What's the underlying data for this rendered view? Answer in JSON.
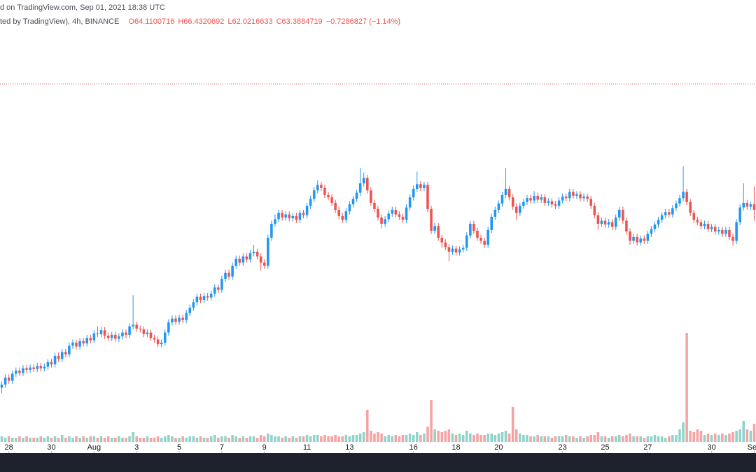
{
  "chart_data": {
    "type": "candlestick",
    "source": "d on TradingView.com, Sep 01, 2021 18:38 UTC",
    "subtitle": "ted by TradingView), 4h, BINANCE",
    "ohlc_labels": [
      "O64.1100716",
      "H66.4320692",
      "L62.0216633",
      "C63.3884719",
      "−0.7286827 (−1.14%)"
    ],
    "up_color": "#2196f3",
    "down_color": "#ef5350",
    "volume_up_color": "#8fd3ca",
    "volume_down_color": "#f5a3a3",
    "price_line": 79.6,
    "price_line_color": "#ef5350",
    "xlim": [
      -0.5,
      212.5
    ],
    "ylim": [
      32.08,
      86.8
    ],
    "vlim": [
      0,
      100
    ],
    "xticks": [
      {
        "value": 2,
        "label": "28"
      },
      {
        "value": 14,
        "label": "30"
      },
      {
        "value": 26,
        "label": "Aug"
      },
      {
        "value": 38,
        "label": "3"
      },
      {
        "value": 50,
        "label": "5"
      },
      {
        "value": 62,
        "label": "7"
      },
      {
        "value": 74,
        "label": "9"
      },
      {
        "value": 86,
        "label": "11"
      },
      {
        "value": 98,
        "label": "13"
      },
      {
        "value": 116,
        "label": "16"
      },
      {
        "value": 128,
        "label": "18"
      },
      {
        "value": 140,
        "label": "20"
      },
      {
        "value": 158,
        "label": "23"
      },
      {
        "value": 170,
        "label": "25"
      },
      {
        "value": 182,
        "label": "27"
      },
      {
        "value": 200,
        "label": "30"
      },
      {
        "value": 212,
        "label": "Sep"
      }
    ],
    "open": [
      40.5,
      40.9,
      41.8,
      41.4,
      42.3,
      42.7,
      42.4,
      43.0,
      42.8,
      43.1,
      42.9,
      43.3,
      43.0,
      43.2,
      43.8,
      43.5,
      44.6,
      44.2,
      45.1,
      44.8,
      45.9,
      46.3,
      45.8,
      46.5,
      46.2,
      46.9,
      46.6,
      47.5,
      47.4,
      47.9,
      47.2,
      46.9,
      47.3,
      46.8,
      47.1,
      47.6,
      47.3,
      48.4,
      48.6,
      48.1,
      48.0,
      47.4,
      47.6,
      46.9,
      46.7,
      46.1,
      46.3,
      47.6,
      48.9,
      49.4,
      49.0,
      49.5,
      49.2,
      50.1,
      50.8,
      51.5,
      52.2,
      51.8,
      52.3,
      52.1,
      52.6,
      53.4,
      53.1,
      54.5,
      55.3,
      54.8,
      56.2,
      57.1,
      56.6,
      57.4,
      57.0,
      57.8,
      58.0,
      57.4,
      56.6,
      56.2,
      59.8,
      61.6,
      62.2,
      63.0,
      62.4,
      62.8,
      62.3,
      62.6,
      62.1,
      63.0,
      62.7,
      63.9,
      64.8,
      65.9,
      66.6,
      66.2,
      65.3,
      65.0,
      64.3,
      63.4,
      62.6,
      62.1,
      63.2,
      64.1,
      64.8,
      65.6,
      66.8,
      67.5,
      65.9,
      64.3,
      63.5,
      62.4,
      61.6,
      62.2,
      62.9,
      63.4,
      62.8,
      62.5,
      62.1,
      63.7,
      65.0,
      66.1,
      66.7,
      66.2,
      66.6,
      63.5,
      60.7,
      61.3,
      59.8,
      59.2,
      58.6,
      58.0,
      58.4,
      57.9,
      58.3,
      58.5,
      60.1,
      61.6,
      60.7,
      59.8,
      59.4,
      58.9,
      60.8,
      62.5,
      63.4,
      64.2,
      65.3,
      66.1,
      65.0,
      63.8,
      63.0,
      63.9,
      64.4,
      64.9,
      64.6,
      65.2,
      64.7,
      65.0,
      64.3,
      64.5,
      64.1,
      63.9,
      64.6,
      65.1,
      64.9,
      65.7,
      65.2,
      65.4,
      64.9,
      65.1,
      64.8,
      63.9,
      62.7,
      61.6,
      62.0,
      61.5,
      61.8,
      61.2,
      62.4,
      63.4,
      62.0,
      60.6,
      59.4,
      59.9,
      59.2,
      59.7,
      59.4,
      60.3,
      60.9,
      61.5,
      62.1,
      62.7,
      63.1,
      62.8,
      63.6,
      64.2,
      64.9,
      65.7,
      64.4,
      63.0,
      62.1,
      61.8,
      61.3,
      61.6,
      60.9,
      61.2,
      60.6,
      60.8,
      60.3,
      60.8,
      59.9,
      59.4,
      61.8,
      63.7,
      64.3,
      63.8,
      64.1
    ],
    "high": [
      41.3,
      42.2,
      42.2,
      42.7,
      43.1,
      43.1,
      43.4,
      43.4,
      43.5,
      43.5,
      43.7,
      43.7,
      43.6,
      44.2,
      44.2,
      45.0,
      45.0,
      45.5,
      45.5,
      46.3,
      46.7,
      46.7,
      46.9,
      46.9,
      47.3,
      47.3,
      47.9,
      48.4,
      48.3,
      48.3,
      47.6,
      47.7,
      47.7,
      47.5,
      48.0,
      48.0,
      48.8,
      52.4,
      49.0,
      48.5,
      48.4,
      48.0,
      48.0,
      47.3,
      47.1,
      46.7,
      48.0,
      49.3,
      49.8,
      49.8,
      49.9,
      49.9,
      50.5,
      51.2,
      51.9,
      52.6,
      52.6,
      52.7,
      52.7,
      53.0,
      53.8,
      53.8,
      54.9,
      55.7,
      55.7,
      56.6,
      57.5,
      57.5,
      57.8,
      57.8,
      58.2,
      58.9,
      58.4,
      57.8,
      57.0,
      60.2,
      62.0,
      62.8,
      63.4,
      63.4,
      63.2,
      63.2,
      63.0,
      63.0,
      63.4,
      63.4,
      64.3,
      65.2,
      66.3,
      67.2,
      67.0,
      66.6,
      65.7,
      65.4,
      64.7,
      63.8,
      63.0,
      63.6,
      64.5,
      65.2,
      66.0,
      68.8,
      68.2,
      67.9,
      66.3,
      64.7,
      63.9,
      62.8,
      62.6,
      63.3,
      63.8,
      63.8,
      63.2,
      62.9,
      64.1,
      65.4,
      66.5,
      68.3,
      67.1,
      67.0,
      67.0,
      63.9,
      61.7,
      61.7,
      60.2,
      59.6,
      59.0,
      58.8,
      58.8,
      58.7,
      58.9,
      60.5,
      62.0,
      62.0,
      61.1,
      60.2,
      59.8,
      61.2,
      62.9,
      63.8,
      64.6,
      65.7,
      68.8,
      66.5,
      65.4,
      64.2,
      64.3,
      64.8,
      65.3,
      65.3,
      65.8,
      65.6,
      65.4,
      65.4,
      64.9,
      64.9,
      64.5,
      65.0,
      65.5,
      65.5,
      66.1,
      66.1,
      65.8,
      65.8,
      65.5,
      65.5,
      65.2,
      64.3,
      63.1,
      62.4,
      62.4,
      62.2,
      62.2,
      62.8,
      63.8,
      63.8,
      62.4,
      61.0,
      60.3,
      60.3,
      60.1,
      60.1,
      60.7,
      61.3,
      61.9,
      62.5,
      63.1,
      63.5,
      63.5,
      64.0,
      64.6,
      65.3,
      69.0,
      66.1,
      64.8,
      63.4,
      62.5,
      62.2,
      62.0,
      62.0,
      61.6,
      61.6,
      61.2,
      61.2,
      61.2,
      61.2,
      60.3,
      62.2,
      64.1,
      66.8,
      64.7,
      64.5,
      66.4
    ],
    "low": [
      39.8,
      40.5,
      41.0,
      41.0,
      41.9,
      42.0,
      42.0,
      42.4,
      42.4,
      42.5,
      42.5,
      42.6,
      42.6,
      42.8,
      43.1,
      43.1,
      43.8,
      43.8,
      44.4,
      44.4,
      45.5,
      45.4,
      45.4,
      45.8,
      45.8,
      46.2,
      46.2,
      47.0,
      47.0,
      46.8,
      46.5,
      46.5,
      46.4,
      46.4,
      46.7,
      46.9,
      46.9,
      48.0,
      47.7,
      47.6,
      47.0,
      47.0,
      46.5,
      46.3,
      45.7,
      45.7,
      45.9,
      47.2,
      48.5,
      48.6,
      48.6,
      48.8,
      48.8,
      49.7,
      50.4,
      51.1,
      51.4,
      51.4,
      51.7,
      51.7,
      52.2,
      52.7,
      52.7,
      54.1,
      54.4,
      54.4,
      55.8,
      56.2,
      56.2,
      56.6,
      56.6,
      57.4,
      57.0,
      55.6,
      55.8,
      55.8,
      59.4,
      61.2,
      61.8,
      62.0,
      62.0,
      61.9,
      61.9,
      61.7,
      61.7,
      62.3,
      62.3,
      63.5,
      64.4,
      65.5,
      65.8,
      64.9,
      64.6,
      63.9,
      63.0,
      62.2,
      61.7,
      61.7,
      62.8,
      63.7,
      64.4,
      65.2,
      66.4,
      65.5,
      63.9,
      63.1,
      62.0,
      61.0,
      61.2,
      61.8,
      62.5,
      62.4,
      62.1,
      61.7,
      61.7,
      63.3,
      64.6,
      65.7,
      65.8,
      65.8,
      63.1,
      60.3,
      60.3,
      59.4,
      58.5,
      58.2,
      56.8,
      57.6,
      57.5,
      57.5,
      57.9,
      58.1,
      59.7,
      60.3,
      59.4,
      59.0,
      58.5,
      58.5,
      60.4,
      62.1,
      63.0,
      63.8,
      64.9,
      64.6,
      63.4,
      62.1,
      62.6,
      63.5,
      64.0,
      64.2,
      64.2,
      64.3,
      64.3,
      63.9,
      63.9,
      63.7,
      63.5,
      63.5,
      64.2,
      64.5,
      64.5,
      64.8,
      64.8,
      64.5,
      64.5,
      64.4,
      63.5,
      62.3,
      60.8,
      61.2,
      61.1,
      61.1,
      60.8,
      60.8,
      62.0,
      61.6,
      60.2,
      58.9,
      59.0,
      58.8,
      58.8,
      59.0,
      59.0,
      59.9,
      60.5,
      61.1,
      61.7,
      62.3,
      62.4,
      62.4,
      63.2,
      63.8,
      64.5,
      64.0,
      62.6,
      61.7,
      61.4,
      60.9,
      60.9,
      60.5,
      60.5,
      60.2,
      60.2,
      59.9,
      59.9,
      59.5,
      58.8,
      59.0,
      61.4,
      63.3,
      63.4,
      63.4,
      62.0
    ],
    "close": [
      40.9,
      41.8,
      41.4,
      42.3,
      42.7,
      42.4,
      43.0,
      42.8,
      43.1,
      42.9,
      43.3,
      43.0,
      43.2,
      43.8,
      43.5,
      44.6,
      44.2,
      45.1,
      44.8,
      45.9,
      46.3,
      45.8,
      46.5,
      46.2,
      46.9,
      46.6,
      47.5,
      47.4,
      47.9,
      47.2,
      46.9,
      47.3,
      46.8,
      47.1,
      47.6,
      47.3,
      48.4,
      48.6,
      48.1,
      48.0,
      47.4,
      47.6,
      46.9,
      46.7,
      46.1,
      46.3,
      47.6,
      48.9,
      49.4,
      49.0,
      49.5,
      49.2,
      50.1,
      50.8,
      51.5,
      52.2,
      51.8,
      52.3,
      52.1,
      52.6,
      53.4,
      53.1,
      54.5,
      55.3,
      54.8,
      56.2,
      57.1,
      56.6,
      57.4,
      57.0,
      57.8,
      58.0,
      57.4,
      56.6,
      56.2,
      59.8,
      61.6,
      62.2,
      63.0,
      62.4,
      62.8,
      62.3,
      62.6,
      62.1,
      63.0,
      62.7,
      63.9,
      64.8,
      65.9,
      66.6,
      66.2,
      65.3,
      65.0,
      64.3,
      63.4,
      62.6,
      62.1,
      63.2,
      64.1,
      64.8,
      65.6,
      66.8,
      67.5,
      65.9,
      64.3,
      63.5,
      62.4,
      61.6,
      62.2,
      62.9,
      63.4,
      62.8,
      62.5,
      62.1,
      63.7,
      65.0,
      66.1,
      66.7,
      66.2,
      66.6,
      63.5,
      60.7,
      61.3,
      59.8,
      59.2,
      58.6,
      58.0,
      58.4,
      57.9,
      58.3,
      58.5,
      60.1,
      61.6,
      60.7,
      59.8,
      59.4,
      58.9,
      60.8,
      62.5,
      63.4,
      64.2,
      65.3,
      66.1,
      65.0,
      63.8,
      63.0,
      63.9,
      64.4,
      64.9,
      64.6,
      65.2,
      64.7,
      65.0,
      64.3,
      64.5,
      64.1,
      63.9,
      64.6,
      65.1,
      64.9,
      65.7,
      65.2,
      65.4,
      64.9,
      65.1,
      64.8,
      63.9,
      62.7,
      61.6,
      62.0,
      61.5,
      61.8,
      61.2,
      62.4,
      63.4,
      62.0,
      60.6,
      59.4,
      59.9,
      59.2,
      59.7,
      59.4,
      60.3,
      60.9,
      61.5,
      62.1,
      62.7,
      63.1,
      62.8,
      63.6,
      64.2,
      64.9,
      65.7,
      64.4,
      63.0,
      62.1,
      61.8,
      61.3,
      61.6,
      60.9,
      61.2,
      60.6,
      60.8,
      60.3,
      60.8,
      59.9,
      59.4,
      61.8,
      63.7,
      64.3,
      63.8,
      64.1,
      63.4
    ],
    "volume": [
      4,
      3,
      4,
      3,
      3,
      4,
      3,
      4,
      3,
      3,
      3,
      4,
      3,
      4,
      3,
      4,
      3,
      5,
      3,
      4,
      3,
      4,
      3,
      4,
      3,
      4,
      4,
      3,
      4,
      3,
      4,
      3,
      3,
      4,
      3,
      3,
      4,
      7,
      4,
      3,
      3,
      4,
      3,
      3,
      4,
      3,
      4,
      5,
      4,
      3,
      3,
      4,
      3,
      4,
      4,
      3,
      4,
      3,
      3,
      4,
      5,
      3,
      4,
      4,
      3,
      5,
      4,
      3,
      4,
      3,
      4,
      4,
      3,
      5,
      4,
      6,
      5,
      4,
      4,
      3,
      4,
      3,
      4,
      3,
      4,
      4,
      5,
      4,
      5,
      5,
      4,
      5,
      4,
      4,
      5,
      4,
      4,
      5,
      4,
      5,
      5,
      6,
      7,
      23,
      8,
      6,
      7,
      6,
      4,
      5,
      4,
      5,
      4,
      5,
      5,
      6,
      5,
      7,
      5,
      6,
      11,
      30,
      9,
      8,
      7,
      8,
      9,
      6,
      5,
      6,
      5,
      8,
      6,
      5,
      6,
      5,
      5,
      6,
      6,
      5,
      6,
      7,
      8,
      6,
      25,
      9,
      6,
      5,
      5,
      4,
      4,
      5,
      4,
      4,
      4,
      3,
      4,
      4,
      4,
      5,
      4,
      4,
      3,
      4,
      3,
      4,
      5,
      5,
      7,
      4,
      4,
      3,
      4,
      4,
      5,
      4,
      5,
      6,
      4,
      4,
      4,
      3,
      4,
      4,
      5,
      4,
      4,
      3,
      4,
      5,
      5,
      9,
      14,
      78,
      8,
      7,
      9,
      8,
      5,
      6,
      5,
      6,
      5,
      6,
      5,
      6,
      7,
      8,
      9,
      15,
      9,
      8,
      13
    ]
  }
}
